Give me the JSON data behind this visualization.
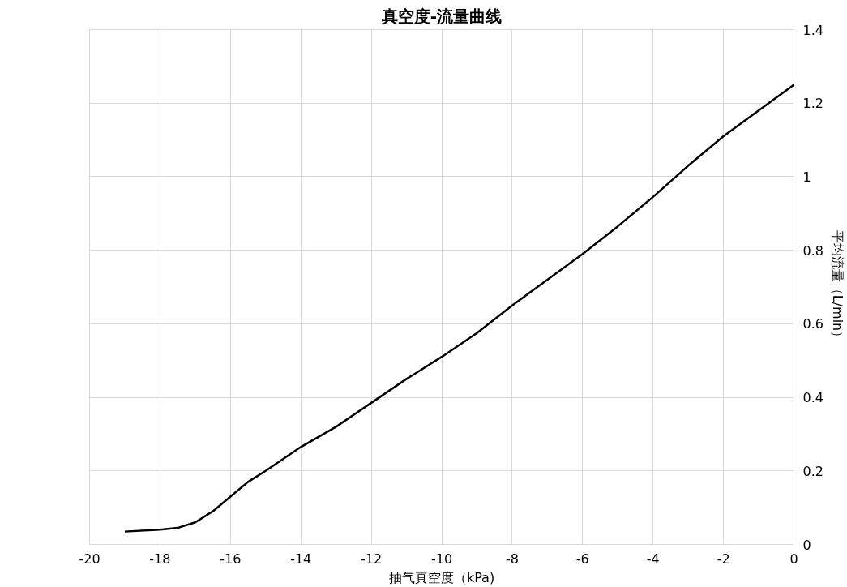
{
  "chart_data": {
    "type": "line",
    "title": "真空度-流量曲线",
    "xlabel": "抽气真空度（kPa)",
    "ylabel": "平均流量（L/min）",
    "x": [
      -19,
      -18,
      -17.5,
      -17,
      -16.5,
      -16,
      -15.5,
      -15,
      -14,
      -13,
      -12,
      -11,
      -10,
      -9,
      -8,
      -7,
      -6,
      -5,
      -4,
      -3,
      -2,
      -1,
      0
    ],
    "series": [
      {
        "color": "#000000",
        "values": [
          0.035,
          0.04,
          0.045,
          0.06,
          0.09,
          0.13,
          0.17,
          0.2,
          0.265,
          0.32,
          0.385,
          0.45,
          0.51,
          0.575,
          0.65,
          0.72,
          0.79,
          0.865,
          0.945,
          1.03,
          1.11,
          1.18,
          1.25
        ]
      }
    ],
    "xlim": [
      -20,
      0
    ],
    "ylim": [
      0,
      1.4
    ],
    "xticks": [
      -20,
      -18,
      -16,
      -14,
      -12,
      -10,
      -8,
      -6,
      -4,
      -2,
      0
    ],
    "yticks": [
      0,
      {
        "value": 0.2,
        "label": "0.2"
      },
      {
        "value": 0.4,
        "label": "0.4"
      },
      {
        "value": 0.6,
        "label": "0.6"
      },
      {
        "value": 0.8,
        "label": "0.8"
      },
      1,
      {
        "value": 1.2,
        "label": "1.2"
      },
      {
        "value": 1.4,
        "label": "1.4"
      }
    ],
    "grid": true,
    "marker": "none",
    "line_style": "solid"
  }
}
